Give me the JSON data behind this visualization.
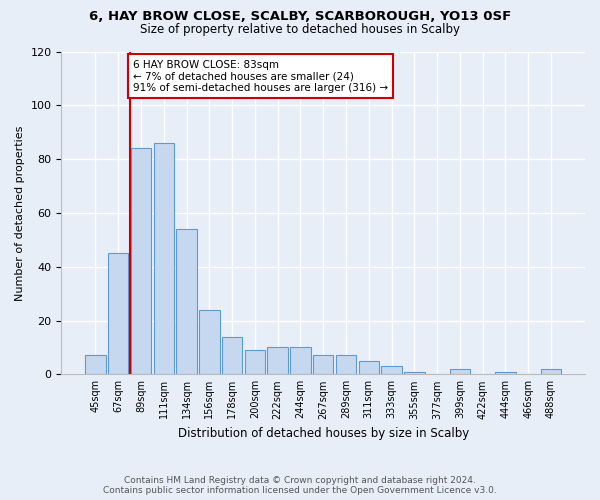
{
  "title": "6, HAY BROW CLOSE, SCALBY, SCARBOROUGH, YO13 0SF",
  "subtitle": "Size of property relative to detached houses in Scalby",
  "xlabel": "Distribution of detached houses by size in Scalby",
  "ylabel": "Number of detached properties",
  "bar_labels": [
    "45sqm",
    "67sqm",
    "89sqm",
    "111sqm",
    "134sqm",
    "156sqm",
    "178sqm",
    "200sqm",
    "222sqm",
    "244sqm",
    "267sqm",
    "289sqm",
    "311sqm",
    "333sqm",
    "355sqm",
    "377sqm",
    "399sqm",
    "422sqm",
    "444sqm",
    "466sqm",
    "488sqm"
  ],
  "bar_values": [
    7,
    45,
    84,
    86,
    54,
    24,
    14,
    9,
    10,
    10,
    7,
    7,
    5,
    3,
    1,
    0,
    2,
    0,
    1,
    0,
    2
  ],
  "bar_color": "#c5d8f0",
  "bar_edge_color": "#5b9bd5",
  "ylim": [
    0,
    120
  ],
  "yticks": [
    0,
    20,
    40,
    60,
    80,
    100,
    120
  ],
  "vline_pos": 1.5,
  "marker_label": "6 HAY BROW CLOSE: 83sqm",
  "annotation_line1": "← 7% of detached houses are smaller (24)",
  "annotation_line2": "91% of semi-detached houses are larger (316) →",
  "vline_color": "#cc0000",
  "footer_line1": "Contains HM Land Registry data © Crown copyright and database right 2024.",
  "footer_line2": "Contains public sector information licensed under the Open Government Licence v3.0.",
  "background_color": "#e8eef8"
}
